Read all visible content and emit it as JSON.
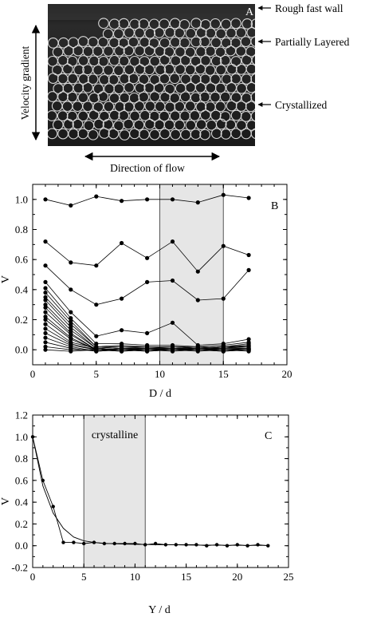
{
  "colors": {
    "photo_dark": "#1e1e1e",
    "particle": "#d9d9d9",
    "shade": "#e6e6e6",
    "ink": "#000000"
  },
  "chart_data": [
    {
      "type": "photo",
      "panel_label": "A",
      "annotations": [
        "Rough fast wall",
        "Partially Layered",
        "Crystallized"
      ],
      "vertical_arrow_label": "Velocity gradient",
      "horizontal_arrow_label": "Direction of flow"
    },
    {
      "type": "line",
      "panel_label": "B",
      "xlabel": "D / d",
      "ylabel": "V",
      "xlim": [
        0,
        20
      ],
      "ylim": [
        -0.1,
        1.1
      ],
      "xticks": [
        0,
        5,
        10,
        15,
        20
      ],
      "yticks": [
        0.0,
        0.2,
        0.4,
        0.6,
        0.8,
        1.0
      ],
      "shaded_region": [
        10,
        15
      ],
      "x": [
        1,
        3,
        5,
        7,
        9,
        11,
        13,
        15,
        17
      ],
      "series": [
        {
          "values": [
            1.0,
            0.96,
            1.02,
            0.99,
            1.0,
            1.0,
            0.98,
            1.03,
            1.01
          ]
        },
        {
          "values": [
            0.72,
            0.58,
            0.56,
            0.71,
            0.61,
            0.72,
            0.52,
            0.69,
            0.63
          ]
        },
        {
          "values": [
            0.56,
            0.4,
            0.3,
            0.34,
            0.45,
            0.46,
            0.33,
            0.34,
            0.53
          ]
        },
        {
          "values": [
            0.45,
            0.25,
            0.09,
            0.13,
            0.11,
            0.18,
            0.03,
            0.04,
            0.07
          ]
        },
        {
          "values": [
            0.41,
            0.21,
            0.04,
            0.04,
            0.03,
            0.03,
            0.02,
            0.03,
            0.05
          ]
        },
        {
          "values": [
            0.38,
            0.19,
            0.02,
            0.03,
            0.02,
            0.02,
            0.01,
            0.02,
            0.04
          ]
        },
        {
          "values": [
            0.35,
            0.17,
            0.02,
            0.02,
            0.02,
            0.02,
            0.01,
            0.02,
            0.03
          ]
        },
        {
          "values": [
            0.33,
            0.15,
            0.01,
            0.02,
            0.02,
            0.02,
            0.02,
            0.01,
            0.03
          ]
        },
        {
          "values": [
            0.3,
            0.13,
            0.01,
            0.02,
            0.01,
            0.02,
            0.01,
            0.01,
            0.02
          ]
        },
        {
          "values": [
            0.28,
            0.11,
            0.0,
            0.01,
            0.01,
            0.01,
            0.01,
            0.02,
            0.02
          ]
        },
        {
          "values": [
            0.25,
            0.1,
            0.0,
            0.01,
            0.01,
            0.01,
            0.0,
            0.01,
            0.01
          ]
        },
        {
          "values": [
            0.22,
            0.08,
            0.0,
            0.01,
            0.0,
            0.01,
            0.0,
            0.01,
            0.01
          ]
        },
        {
          "values": [
            0.2,
            0.07,
            0.0,
            0.0,
            0.01,
            0.0,
            0.0,
            0.0,
            0.01
          ]
        },
        {
          "values": [
            0.17,
            0.05,
            0.01,
            0.0,
            0.0,
            0.0,
            0.01,
            0.0,
            0.0
          ]
        },
        {
          "values": [
            0.14,
            0.04,
            0.0,
            0.0,
            0.0,
            0.0,
            0.0,
            0.0,
            0.0
          ]
        },
        {
          "values": [
            0.11,
            0.03,
            0.0,
            -0.01,
            0.0,
            0.0,
            0.0,
            -0.01,
            0.0
          ]
        },
        {
          "values": [
            0.08,
            0.02,
            -0.01,
            0.0,
            -0.01,
            0.0,
            0.0,
            0.0,
            -0.01
          ]
        },
        {
          "values": [
            0.05,
            0.01,
            -0.01,
            0.0,
            0.0,
            -0.01,
            0.0,
            0.0,
            0.0
          ]
        },
        {
          "values": [
            0.02,
            0.0,
            0.0,
            -0.01,
            0.0,
            0.0,
            -0.01,
            0.0,
            0.0
          ]
        },
        {
          "values": [
            0.0,
            -0.01,
            0.0,
            0.0,
            -0.01,
            0.0,
            0.0,
            -0.01,
            0.0
          ]
        }
      ]
    },
    {
      "type": "line",
      "panel_label": "C",
      "xlabel": "Y / d",
      "ylabel": "V",
      "xlim": [
        0,
        25
      ],
      "ylim": [
        -0.2,
        1.2
      ],
      "xticks": [
        0,
        5,
        10,
        15,
        20,
        25
      ],
      "yticks": [
        -0.2,
        0.0,
        0.2,
        0.4,
        0.6,
        0.8,
        1.0,
        1.2
      ],
      "shaded_region": [
        5,
        11
      ],
      "shaded_label": "crystalline",
      "series": [
        {
          "x": [
            0,
            1,
            2,
            3,
            4,
            5,
            6,
            7,
            8,
            9,
            10,
            11,
            12,
            13,
            14,
            15,
            16,
            17,
            18,
            19,
            20,
            21,
            22,
            23
          ],
          "values": [
            1.0,
            0.6,
            0.36,
            0.03,
            0.03,
            0.02,
            0.03,
            0.02,
            0.02,
            0.02,
            0.02,
            0.01,
            0.02,
            0.01,
            0.01,
            0.01,
            0.01,
            0.0,
            0.01,
            0.0,
            0.01,
            0.0,
            0.01,
            0.0
          ]
        },
        {
          "x": [
            0,
            1,
            2,
            3,
            4,
            5,
            6,
            7,
            8,
            9,
            10,
            11,
            12,
            13,
            14,
            15,
            16,
            17,
            18,
            19,
            20,
            21,
            22,
            23
          ],
          "values": [
            1.0,
            0.55,
            0.3,
            0.16,
            0.08,
            0.045,
            0.03,
            0.022,
            0.018,
            0.015,
            0.013,
            0.011,
            0.01,
            0.009,
            0.008,
            0.007,
            0.006,
            0.005,
            0.005,
            0.004,
            0.004,
            0.003,
            0.003,
            0.003
          ]
        }
      ]
    }
  ]
}
